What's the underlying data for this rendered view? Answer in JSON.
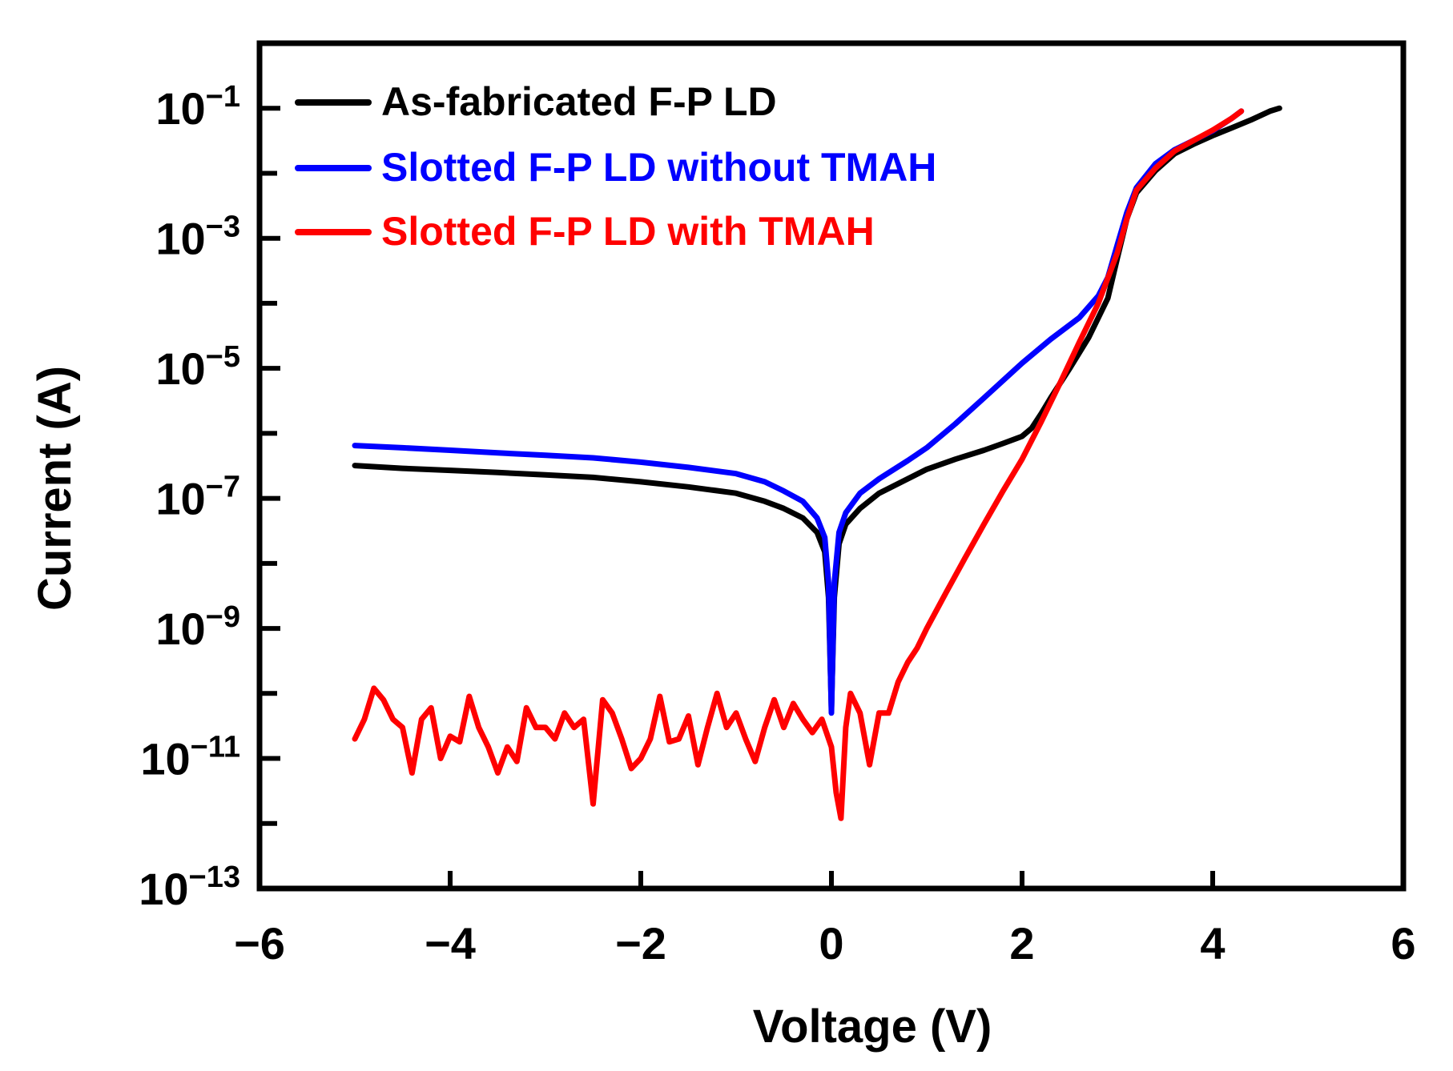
{
  "chart_data": {
    "type": "line",
    "xlabel": "Voltage (V)",
    "ylabel": "Current (A)",
    "xlim": [
      -6,
      6
    ],
    "ylim": [
      1e-13,
      1
    ],
    "yscale": "log",
    "grid": false,
    "legend_position": "top-left",
    "x_ticks": [
      {
        "value": -6,
        "label": "−6"
      },
      {
        "value": -4,
        "label": "−4"
      },
      {
        "value": -2,
        "label": "−2"
      },
      {
        "value": 0,
        "label": "0"
      },
      {
        "value": 2,
        "label": "2"
      },
      {
        "value": 4,
        "label": "4"
      },
      {
        "value": 6,
        "label": "6"
      }
    ],
    "y_ticks": [
      {
        "exp": -1,
        "label": "10",
        "sup": "−1"
      },
      {
        "exp": -3,
        "label": "10",
        "sup": "−3"
      },
      {
        "exp": -5,
        "label": "10",
        "sup": "−5"
      },
      {
        "exp": -7,
        "label": "10",
        "sup": "−7"
      },
      {
        "exp": -9,
        "label": "10",
        "sup": "−9"
      },
      {
        "exp": -11,
        "label": "10",
        "sup": "−11"
      },
      {
        "exp": -13,
        "label": "10",
        "sup": "−13"
      }
    ],
    "series": [
      {
        "name": "As-fabricated F-P LD",
        "color": "#000000",
        "points": [
          [
            -5,
            3.2e-07
          ],
          [
            -4.5,
            2.9e-07
          ],
          [
            -4,
            2.7e-07
          ],
          [
            -3.5,
            2.5e-07
          ],
          [
            -3,
            2.3e-07
          ],
          [
            -2.5,
            2.1e-07
          ],
          [
            -2,
            1.8e-07
          ],
          [
            -1.5,
            1.5e-07
          ],
          [
            -1,
            1.2e-07
          ],
          [
            -0.7,
            9e-08
          ],
          [
            -0.5,
            7e-08
          ],
          [
            -0.3,
            5e-08
          ],
          [
            -0.15,
            3e-08
          ],
          [
            -0.07,
            1.5e-08
          ],
          [
            -0.03,
            3e-09
          ],
          [
            0,
            6e-11
          ],
          [
            0.03,
            3e-09
          ],
          [
            0.08,
            2e-08
          ],
          [
            0.15,
            4e-08
          ],
          [
            0.3,
            7e-08
          ],
          [
            0.5,
            1.2e-07
          ],
          [
            0.8,
            2e-07
          ],
          [
            1,
            2.8e-07
          ],
          [
            1.3,
            4e-07
          ],
          [
            1.6,
            5.5e-07
          ],
          [
            1.8,
            7e-07
          ],
          [
            2,
            9e-07
          ],
          [
            2.1,
            1.2e-06
          ],
          [
            2.2,
            2e-06
          ],
          [
            2.3,
            3.5e-06
          ],
          [
            2.5,
            1e-05
          ],
          [
            2.7,
            3e-05
          ],
          [
            2.9,
            0.00012
          ],
          [
            3,
            0.0005
          ],
          [
            3.1,
            0.002
          ],
          [
            3.2,
            0.005
          ],
          [
            3.4,
            0.011
          ],
          [
            3.6,
            0.02
          ],
          [
            3.8,
            0.028
          ],
          [
            4,
            0.038
          ],
          [
            4.2,
            0.05
          ],
          [
            4.4,
            0.066
          ],
          [
            4.6,
            0.09
          ],
          [
            4.7,
            0.1
          ]
        ]
      },
      {
        "name": "Slotted F-P LD without TMAH",
        "color": "#0000ff",
        "points": [
          [
            -5,
            6.5e-07
          ],
          [
            -4.5,
            6e-07
          ],
          [
            -4,
            5.5e-07
          ],
          [
            -3.5,
            5e-07
          ],
          [
            -3,
            4.6e-07
          ],
          [
            -2.5,
            4.2e-07
          ],
          [
            -2,
            3.6e-07
          ],
          [
            -1.5,
            3e-07
          ],
          [
            -1,
            2.4e-07
          ],
          [
            -0.7,
            1.8e-07
          ],
          [
            -0.5,
            1.3e-07
          ],
          [
            -0.3,
            9e-08
          ],
          [
            -0.15,
            5e-08
          ],
          [
            -0.07,
            2.5e-08
          ],
          [
            -0.03,
            5e-09
          ],
          [
            0,
            5e-11
          ],
          [
            0.03,
            5e-09
          ],
          [
            0.08,
            3e-08
          ],
          [
            0.15,
            6e-08
          ],
          [
            0.3,
            1.2e-07
          ],
          [
            0.5,
            2e-07
          ],
          [
            0.8,
            3.8e-07
          ],
          [
            1,
            6e-07
          ],
          [
            1.3,
            1.4e-06
          ],
          [
            1.6,
            3.5e-06
          ],
          [
            2,
            1.2e-05
          ],
          [
            2.3,
            2.8e-05
          ],
          [
            2.6,
            6e-05
          ],
          [
            2.8,
            0.00013
          ],
          [
            2.9,
            0.00025
          ],
          [
            3,
            0.0008
          ],
          [
            3.1,
            0.0025
          ],
          [
            3.2,
            0.006
          ],
          [
            3.4,
            0.014
          ],
          [
            3.6,
            0.023
          ],
          [
            3.8,
            0.032
          ],
          [
            4,
            0.045
          ],
          [
            4.2,
            0.07
          ],
          [
            4.3,
            0.09
          ]
        ]
      },
      {
        "name": "Slotted F-P LD with TMAH",
        "color": "#ff0000",
        "points": [
          [
            -5,
            2e-11
          ],
          [
            -4.9,
            4e-11
          ],
          [
            -4.8,
            1.2e-10
          ],
          [
            -4.7,
            8e-11
          ],
          [
            -4.6,
            4e-11
          ],
          [
            -4.5,
            3e-11
          ],
          [
            -4.4,
            6e-12
          ],
          [
            -4.3,
            4e-11
          ],
          [
            -4.2,
            6e-11
          ],
          [
            -4.1,
            1e-11
          ],
          [
            -4,
            2.2e-11
          ],
          [
            -3.9,
            1.8e-11
          ],
          [
            -3.8,
            9e-11
          ],
          [
            -3.7,
            3e-11
          ],
          [
            -3.6,
            1.5e-11
          ],
          [
            -3.5,
            6e-12
          ],
          [
            -3.4,
            1.5e-11
          ],
          [
            -3.3,
            9e-12
          ],
          [
            -3.2,
            6e-11
          ],
          [
            -3.1,
            3e-11
          ],
          [
            -3,
            3e-11
          ],
          [
            -2.9,
            2e-11
          ],
          [
            -2.8,
            5e-11
          ],
          [
            -2.7,
            3e-11
          ],
          [
            -2.6,
            4e-11
          ],
          [
            -2.5,
            2e-12
          ],
          [
            -2.4,
            8e-11
          ],
          [
            -2.3,
            5e-11
          ],
          [
            -2.2,
            2e-11
          ],
          [
            -2.1,
            7e-12
          ],
          [
            -2,
            1e-11
          ],
          [
            -1.9,
            2e-11
          ],
          [
            -1.8,
            9e-11
          ],
          [
            -1.7,
            1.8e-11
          ],
          [
            -1.6,
            2e-11
          ],
          [
            -1.5,
            4.5e-11
          ],
          [
            -1.4,
            8e-12
          ],
          [
            -1.3,
            3e-11
          ],
          [
            -1.2,
            1e-10
          ],
          [
            -1.1,
            3e-11
          ],
          [
            -1,
            5e-11
          ],
          [
            -0.9,
            2e-11
          ],
          [
            -0.8,
            9e-12
          ],
          [
            -0.7,
            3e-11
          ],
          [
            -0.6,
            8e-11
          ],
          [
            -0.5,
            3e-11
          ],
          [
            -0.4,
            7e-11
          ],
          [
            -0.3,
            4e-11
          ],
          [
            -0.2,
            2.5e-11
          ],
          [
            -0.1,
            4e-11
          ],
          [
            0,
            1.5e-11
          ],
          [
            0.05,
            3e-12
          ],
          [
            0.1,
            1.2e-12
          ],
          [
            0.15,
            3e-11
          ],
          [
            0.2,
            1e-10
          ],
          [
            0.3,
            5e-11
          ],
          [
            0.4,
            8e-12
          ],
          [
            0.5,
            5e-11
          ],
          [
            0.6,
            5e-11
          ],
          [
            0.7,
            1.5e-10
          ],
          [
            0.8,
            3e-10
          ],
          [
            0.9,
            5e-10
          ],
          [
            1,
            1e-09
          ],
          [
            1.2,
            3.5e-09
          ],
          [
            1.4,
            1.2e-08
          ],
          [
            1.6,
            4e-08
          ],
          [
            1.8,
            1.3e-07
          ],
          [
            2,
            4e-07
          ],
          [
            2.2,
            1.5e-06
          ],
          [
            2.4,
            6e-06
          ],
          [
            2.6,
            2.5e-05
          ],
          [
            2.8,
            0.0001
          ],
          [
            3,
            0.0006
          ],
          [
            3.1,
            0.002
          ],
          [
            3.2,
            0.0055
          ],
          [
            3.4,
            0.012
          ],
          [
            3.6,
            0.022
          ],
          [
            3.8,
            0.032
          ],
          [
            4,
            0.046
          ],
          [
            4.2,
            0.07
          ],
          [
            4.3,
            0.09
          ]
        ]
      }
    ]
  }
}
